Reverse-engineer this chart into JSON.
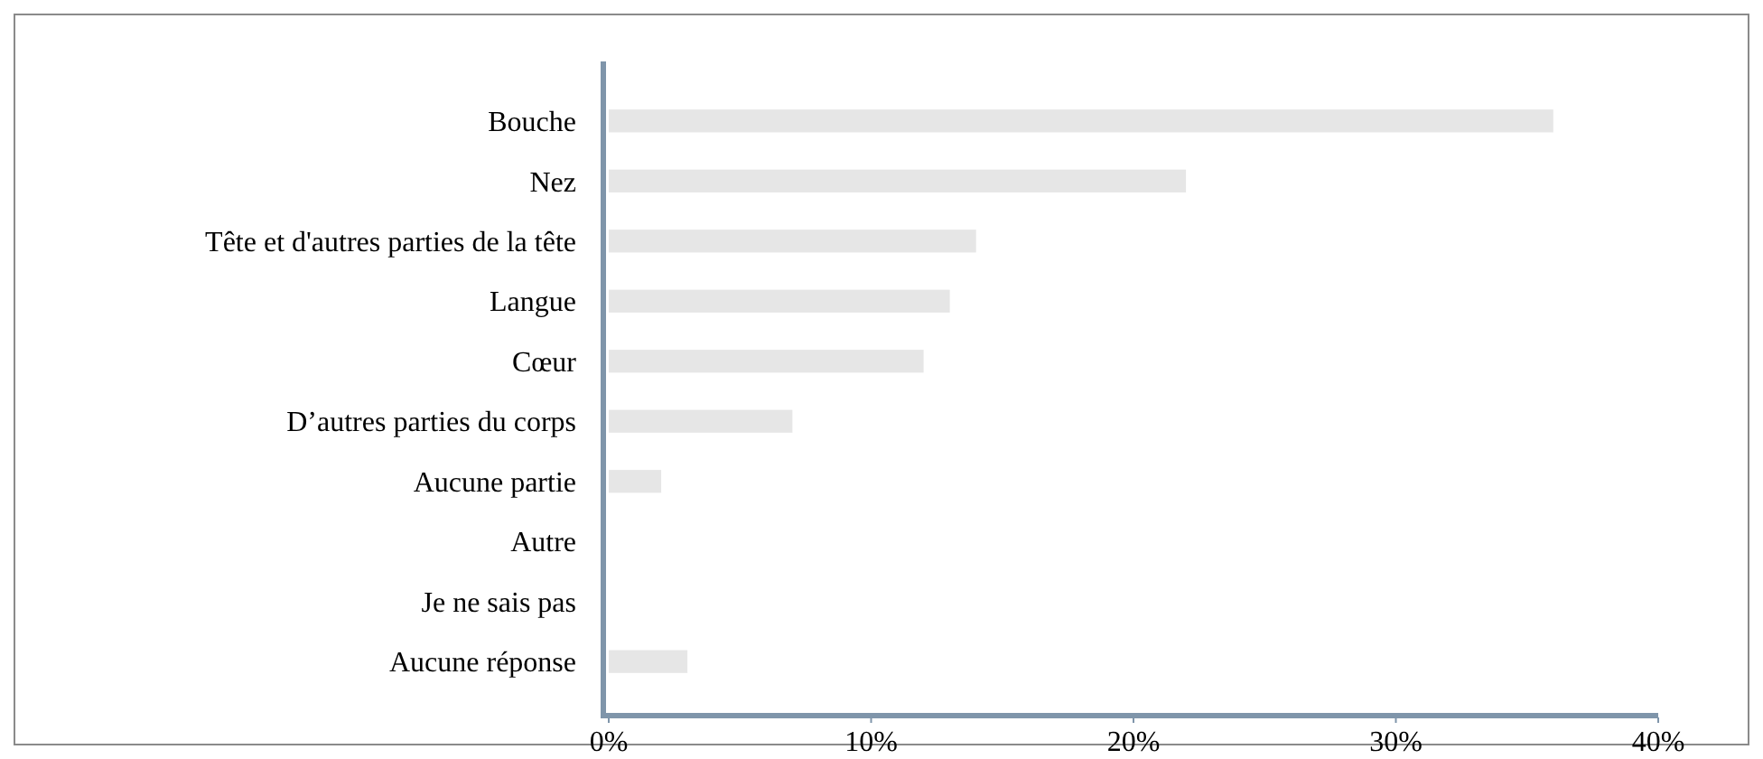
{
  "chart_data": {
    "type": "bar",
    "orientation": "horizontal",
    "categories": [
      "Bouche",
      "Nez",
      "Tête et d'autres parties de la tête",
      "Langue",
      "Cœur",
      "D’autres parties du corps",
      "Aucune partie",
      "Autre",
      "Je ne sais pas",
      "Aucune réponse"
    ],
    "values": [
      36,
      22,
      14,
      13,
      12,
      7,
      2,
      0,
      0,
      3
    ],
    "color": "#e6e6e6",
    "xlim": [
      0,
      40
    ],
    "xticks": [
      {
        "value": 0,
        "label": "0%"
      },
      {
        "value": 10,
        "label": "10%"
      },
      {
        "value": 20,
        "label": "20%"
      },
      {
        "value": 30,
        "label": "30%"
      },
      {
        "value": 40,
        "label": "40%"
      }
    ],
    "grid": false
  }
}
